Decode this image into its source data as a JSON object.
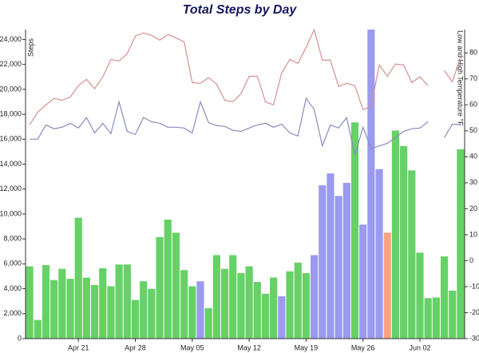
{
  "chart_data": {
    "type": "bar",
    "title": "Total Steps by Day",
    "ylabel": "Steps",
    "y2label": "Low and High Temperature °F",
    "categories": [
      null,
      null,
      null,
      null,
      null,
      null,
      "Apr 21",
      null,
      null,
      null,
      null,
      null,
      null,
      "Apr 28",
      null,
      null,
      null,
      null,
      null,
      null,
      "May 05",
      null,
      null,
      null,
      null,
      null,
      null,
      "May 12",
      null,
      null,
      null,
      null,
      null,
      null,
      "May 19",
      null,
      null,
      null,
      null,
      null,
      null,
      "May 26",
      null,
      null,
      null,
      null,
      null,
      null,
      "Jun 02",
      null,
      null,
      null,
      null,
      null
    ],
    "ylim": [
      0,
      24800
    ],
    "yticks": [
      0,
      {
        "value": 2000,
        "label": "2,000"
      },
      {
        "value": 4000,
        "label": "4,000"
      },
      {
        "value": 6000,
        "label": "6,000"
      },
      {
        "value": 8000,
        "label": "8,000"
      },
      {
        "value": 10000,
        "label": "10,000"
      },
      {
        "value": 12000,
        "label": "12,000"
      },
      {
        "value": 14000,
        "label": "14,000"
      },
      {
        "value": 16000,
        "label": "16,000"
      },
      {
        "value": 18000,
        "label": "18,000"
      },
      {
        "value": 20000,
        "label": "20,000"
      },
      {
        "value": 22000,
        "label": "22,000"
      },
      {
        "value": 24000,
        "label": "24,000"
      }
    ],
    "y2lim": [
      -30,
      89
    ],
    "y2ticks": [
      -30,
      -20,
      -10,
      0,
      10,
      20,
      30,
      40,
      50,
      60,
      70,
      80
    ],
    "series": [
      {
        "type": "bar",
        "values": [
          5800,
          1500,
          5900,
          4700,
          5600,
          4800,
          9700,
          4900,
          4300,
          5650,
          4200,
          5950,
          5950,
          3100,
          4600,
          4000,
          8150,
          9550,
          8500,
          5500,
          4200,
          4600,
          2450,
          6700,
          5600,
          6700,
          5250,
          5800,
          4550,
          3600,
          4900,
          3400,
          5400,
          6100,
          5250,
          6700,
          12300,
          13250,
          11450,
          12500,
          17350,
          9150,
          24800,
          13600,
          8500,
          16700,
          15450,
          13500,
          6900,
          3250,
          3300,
          6600,
          3850,
          15200
        ],
        "colors": [
          "#66d166",
          "#66d166",
          "#66d166",
          "#66d166",
          "#66d166",
          "#66d166",
          "#66d166",
          "#66d166",
          "#66d166",
          "#66d166",
          "#66d166",
          "#66d166",
          "#66d166",
          "#66d166",
          "#66d166",
          "#66d166",
          "#66d166",
          "#66d166",
          "#66d166",
          "#66d166",
          "#66d166",
          "#9a9af0",
          "#66d166",
          "#66d166",
          "#66d166",
          "#66d166",
          "#66d166",
          "#66d166",
          "#66d166",
          "#66d166",
          "#66d166",
          "#9a9af0",
          "#66d166",
          "#66d166",
          "#66d166",
          "#9a9af0",
          "#9a9af0",
          "#9a9af0",
          "#9a9af0",
          "#9a9af0",
          "#66d166",
          "#9a9af0",
          "#9a9af0",
          "#9a9af0",
          "#f8a37e",
          "#66d166",
          "#66d166",
          "#66d166",
          "#66d166",
          "#66d166",
          "#66d166",
          "#66d166",
          "#66d166",
          "#66d166"
        ]
      },
      {
        "type": "line",
        "axis": "y2",
        "color": "#d89090",
        "values": [
          52.3,
          57.2,
          60,
          62.5,
          61.8,
          63,
          67.4,
          69.8,
          66.2,
          70.8,
          77.5,
          76.9,
          79.7,
          86.5,
          87.7,
          86.8,
          84.9,
          87.1,
          85.8,
          84.3,
          68.6,
          68.3,
          70.5,
          68,
          61.8,
          61.2,
          64.3,
          71,
          71,
          61.2,
          60,
          72.3,
          77.5,
          76,
          82.2,
          88.9,
          77.2,
          77.2,
          67.1,
          68.3,
          67.4,
          58.2,
          59.4,
          75.4,
          71,
          75.7,
          75.4,
          68.6,
          70.8,
          67.4,
          null,
          73.2,
          68.9,
          78.5
        ]
      },
      {
        "type": "line",
        "axis": "y2",
        "color": "#8a8abf",
        "values": [
          46.8,
          46.8,
          52.3,
          50.8,
          51.4,
          52.9,
          51.1,
          55.1,
          49.2,
          52.9,
          48.9,
          61.2,
          49.8,
          48.6,
          55.1,
          53.5,
          52.9,
          51.4,
          51.4,
          51.1,
          49.2,
          61.2,
          53.2,
          52,
          51.7,
          50.2,
          49.8,
          51.1,
          52.3,
          52.9,
          51.4,
          52.6,
          49.2,
          48,
          62.5,
          58.2,
          44.2,
          52.3,
          51.1,
          55.1,
          40.6,
          51.4,
          43.1,
          44.2,
          45.2,
          47.4,
          49.8,
          50.8,
          51.1,
          53.5,
          null,
          47.4,
          52.6,
          52.3
        ]
      }
    ]
  }
}
